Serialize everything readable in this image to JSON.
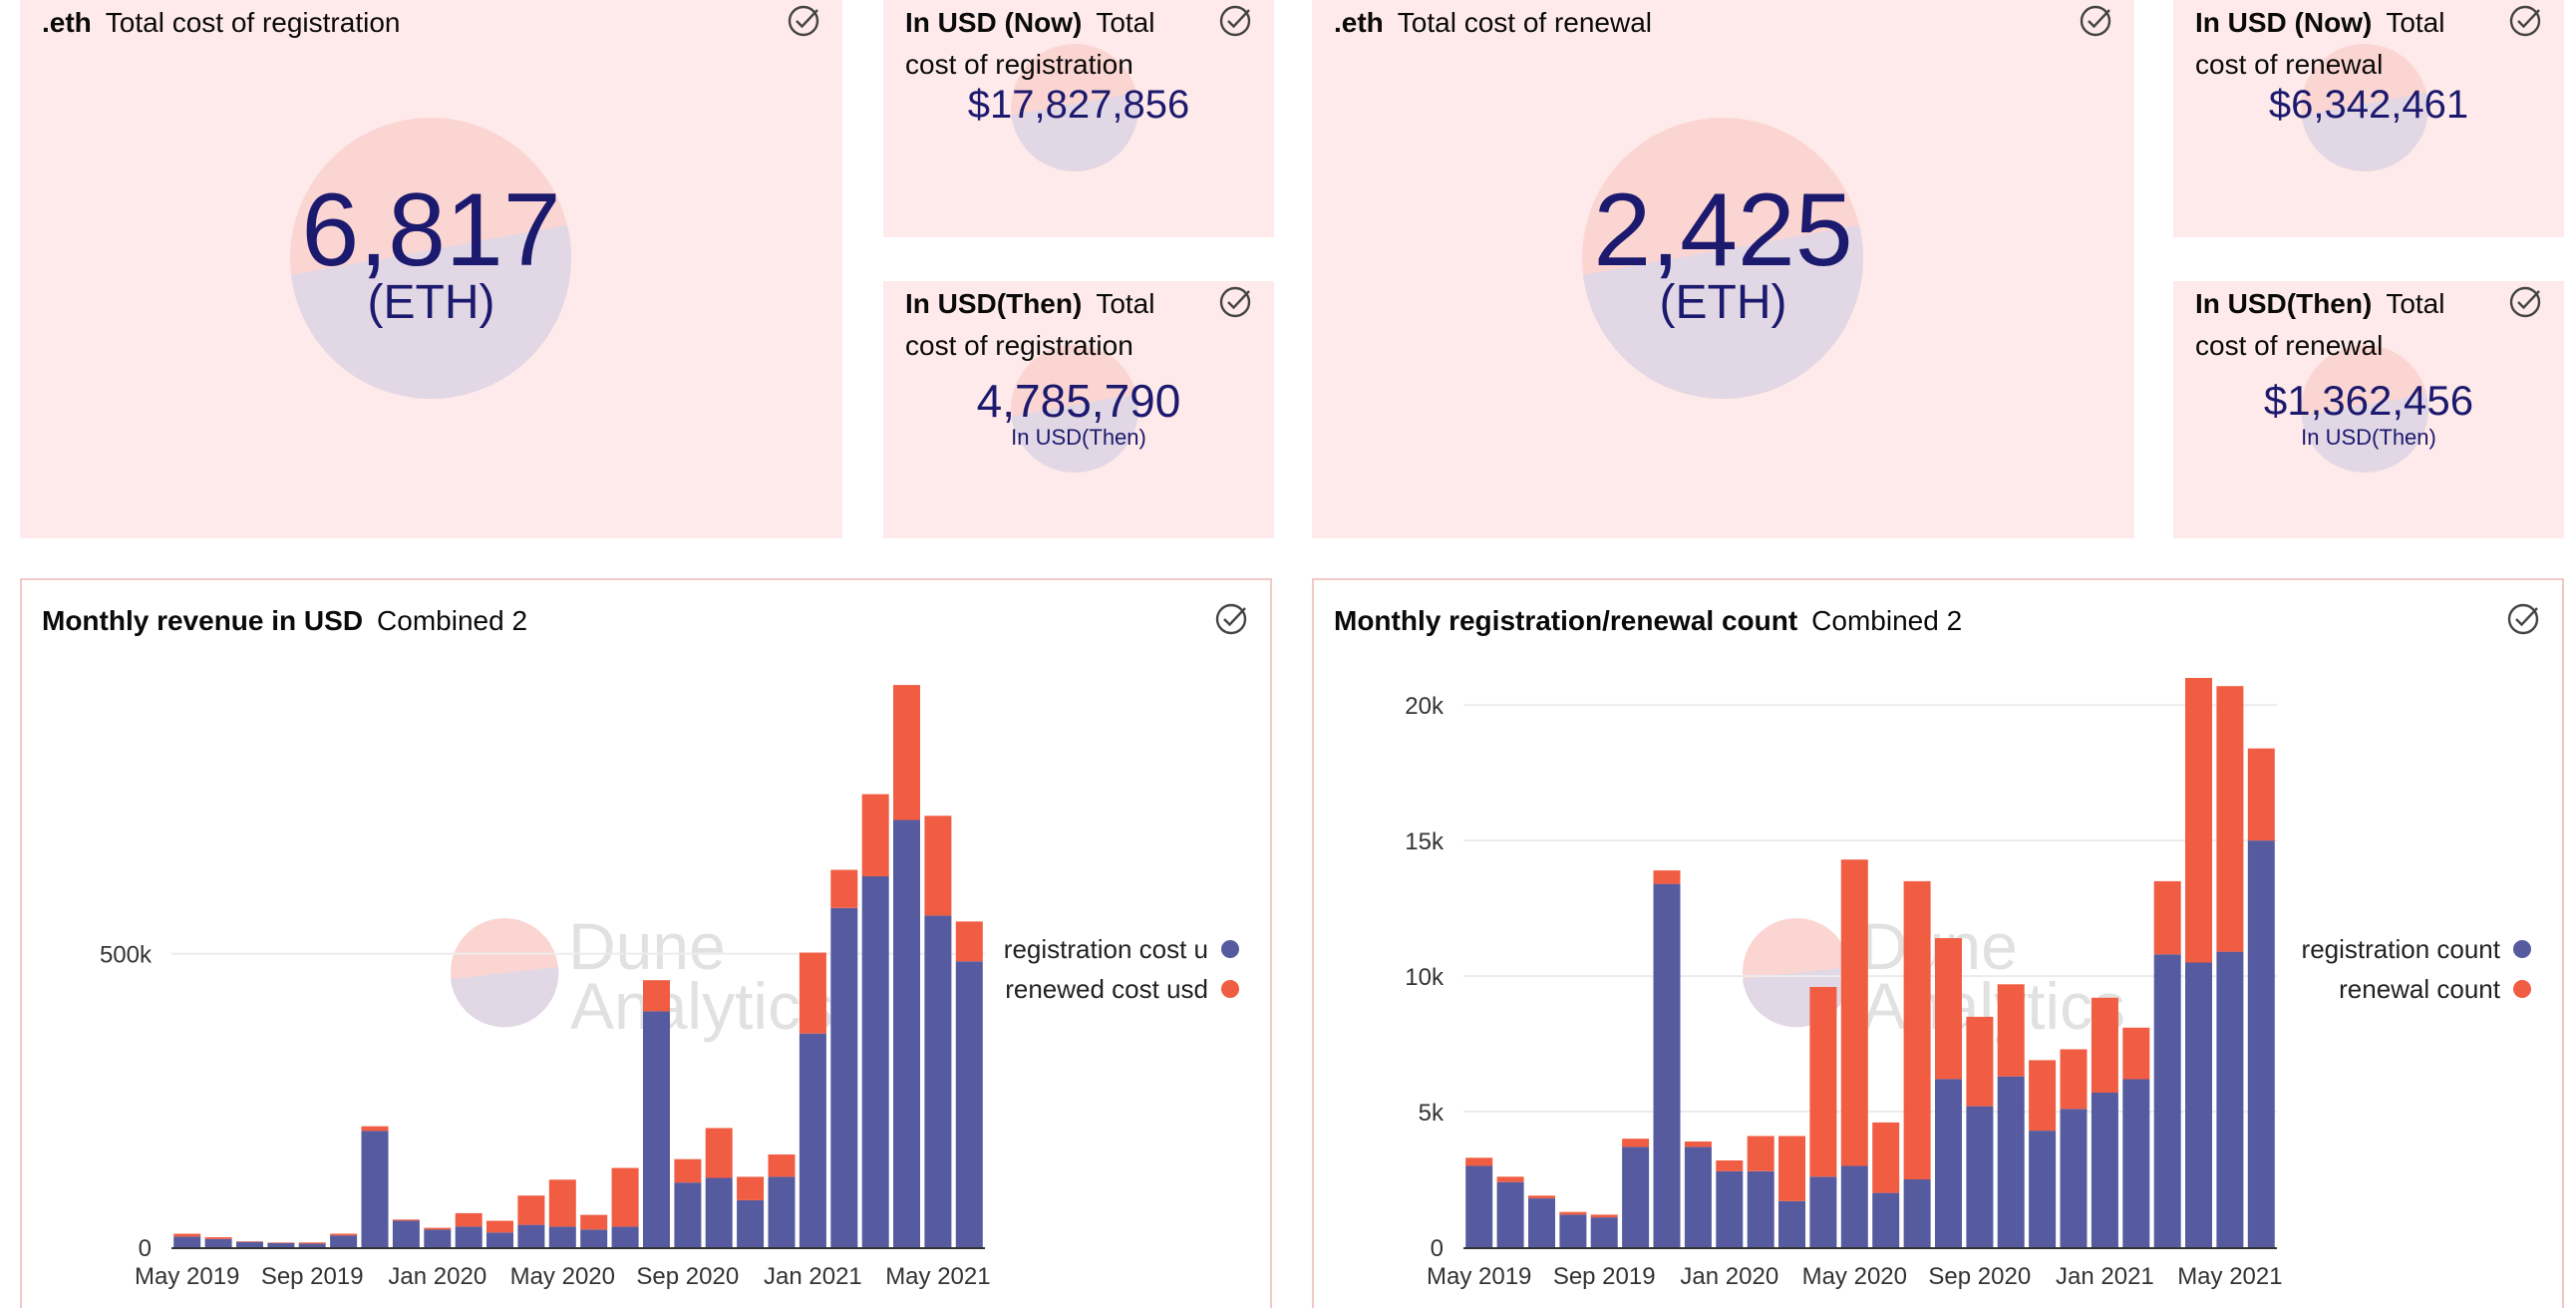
{
  "counters": {
    "reg_eth": {
      "name": ".eth",
      "title": "Total cost of registration",
      "value": "6,817",
      "unit": "(ETH)"
    },
    "reg_usd_now": {
      "name": "In USD (Now)",
      "title": "Total cost of registration",
      "value": "$17,827,856"
    },
    "reg_usd_then": {
      "name": "In USD(Then)",
      "title": "Total cost of registration",
      "value": "4,785,790",
      "sub": "In USD(Then)"
    },
    "ren_eth": {
      "name": ".eth",
      "title": "Total cost of renewal",
      "value": "2,425",
      "unit": "(ETH)"
    },
    "ren_usd_now": {
      "name": "In USD (Now)",
      "title": "Total cost of renewal",
      "value": "$6,342,461"
    },
    "ren_usd_then": {
      "name": "In USD(Then)",
      "title": "Total cost of renewal",
      "value": "$1,362,456",
      "sub": "In USD(Then)"
    }
  },
  "icons": {
    "status": "check-circle-icon",
    "watermark": "dune-logo-icon"
  },
  "watermark": {
    "line1": "Dune",
    "line2": "Analytics"
  },
  "colors": {
    "primary": "#565b9f",
    "secondary": "#f05d43",
    "card_bg": "#feeaea",
    "value_text": "#1c1a6e"
  },
  "chart_data": [
    {
      "type": "bar",
      "stacked": true,
      "title": "Monthly revenue in USD",
      "subtitle": "Combined 2",
      "x_ticks": [
        "May 2019",
        "Sep 2019",
        "Jan 2020",
        "May 2020",
        "Sep 2020",
        "Jan 2021",
        "May 2021"
      ],
      "y_ticks": [
        "0",
        "500k"
      ],
      "y_tick_values": [
        0,
        500000
      ],
      "ylim": [
        0,
        970000
      ],
      "grid": true,
      "legend_position": "right",
      "categories": [
        "May 2019",
        "Jun 2019",
        "Jul 2019",
        "Aug 2019",
        "Sep 2019",
        "Oct 2019",
        "Nov 2019",
        "Dec 2019",
        "Jan 2020",
        "Feb 2020",
        "Mar 2020",
        "Apr 2020",
        "May 2020",
        "Jun 2020",
        "Jul 2020",
        "Aug 2020",
        "Sep 2020",
        "Oct 2020",
        "Nov 2020",
        "Dec 2020",
        "Jan 2021",
        "Feb 2021",
        "Mar 2021",
        "Apr 2021",
        "May 2021",
        "Jun 2021"
      ],
      "series": [
        {
          "name": "registration cost u",
          "color": "#565b9f",
          "values": [
            18000,
            14000,
            9000,
            7000,
            6000,
            20000,
            198000,
            45000,
            30000,
            35000,
            25000,
            38000,
            35000,
            30000,
            35000,
            402000,
            110000,
            118000,
            80000,
            120000,
            364000,
            578000,
            632000,
            728000,
            565000,
            487000
          ]
        },
        {
          "name": "renewed cost usd",
          "color": "#f05d43",
          "values": [
            5000,
            3000,
            1000,
            1000,
            2000,
            3000,
            8000,
            2000,
            3000,
            23000,
            20000,
            50000,
            80000,
            25000,
            100000,
            53000,
            40000,
            85000,
            40000,
            38000,
            138000,
            65000,
            140000,
            230000,
            170000,
            68000
          ]
        }
      ]
    },
    {
      "type": "bar",
      "stacked": true,
      "title": "Monthly registration/renewal count",
      "subtitle": "Combined 2",
      "x_ticks": [
        "May 2019",
        "Sep 2019",
        "Jan 2020",
        "May 2020",
        "Sep 2020",
        "Jan 2021",
        "May 2021"
      ],
      "y_ticks": [
        "0",
        "5k",
        "10k",
        "15k",
        "20k"
      ],
      "y_tick_values": [
        0,
        5000,
        10000,
        15000,
        20000
      ],
      "ylim": [
        0,
        21000
      ],
      "grid": true,
      "legend_position": "right",
      "categories": [
        "May 2019",
        "Jun 2019",
        "Jul 2019",
        "Aug 2019",
        "Sep 2019",
        "Oct 2019",
        "Nov 2019",
        "Dec 2019",
        "Jan 2020",
        "Feb 2020",
        "Mar 2020",
        "Apr 2020",
        "May 2020",
        "Jun 2020",
        "Jul 2020",
        "Aug 2020",
        "Sep 2020",
        "Oct 2020",
        "Nov 2020",
        "Dec 2020",
        "Jan 2021",
        "Feb 2021",
        "Mar 2021",
        "Apr 2021",
        "May 2021",
        "Jun 2021"
      ],
      "series": [
        {
          "name": "registration count",
          "color": "#565b9f",
          "values": [
            3000,
            2400,
            1800,
            1200,
            1100,
            3700,
            13400,
            3700,
            2800,
            2800,
            1700,
            2600,
            3000,
            2000,
            2500,
            6200,
            5200,
            6300,
            4300,
            5100,
            5700,
            6200,
            10800,
            10500,
            10900,
            15000
          ]
        },
        {
          "name": "renewal count",
          "color": "#f05d43",
          "values": [
            300,
            200,
            100,
            100,
            100,
            300,
            500,
            200,
            400,
            1300,
            2400,
            7000,
            11300,
            2600,
            11000,
            5200,
            3300,
            3400,
            2600,
            2200,
            3500,
            1900,
            2700,
            10500,
            9800,
            3400
          ]
        }
      ]
    }
  ]
}
